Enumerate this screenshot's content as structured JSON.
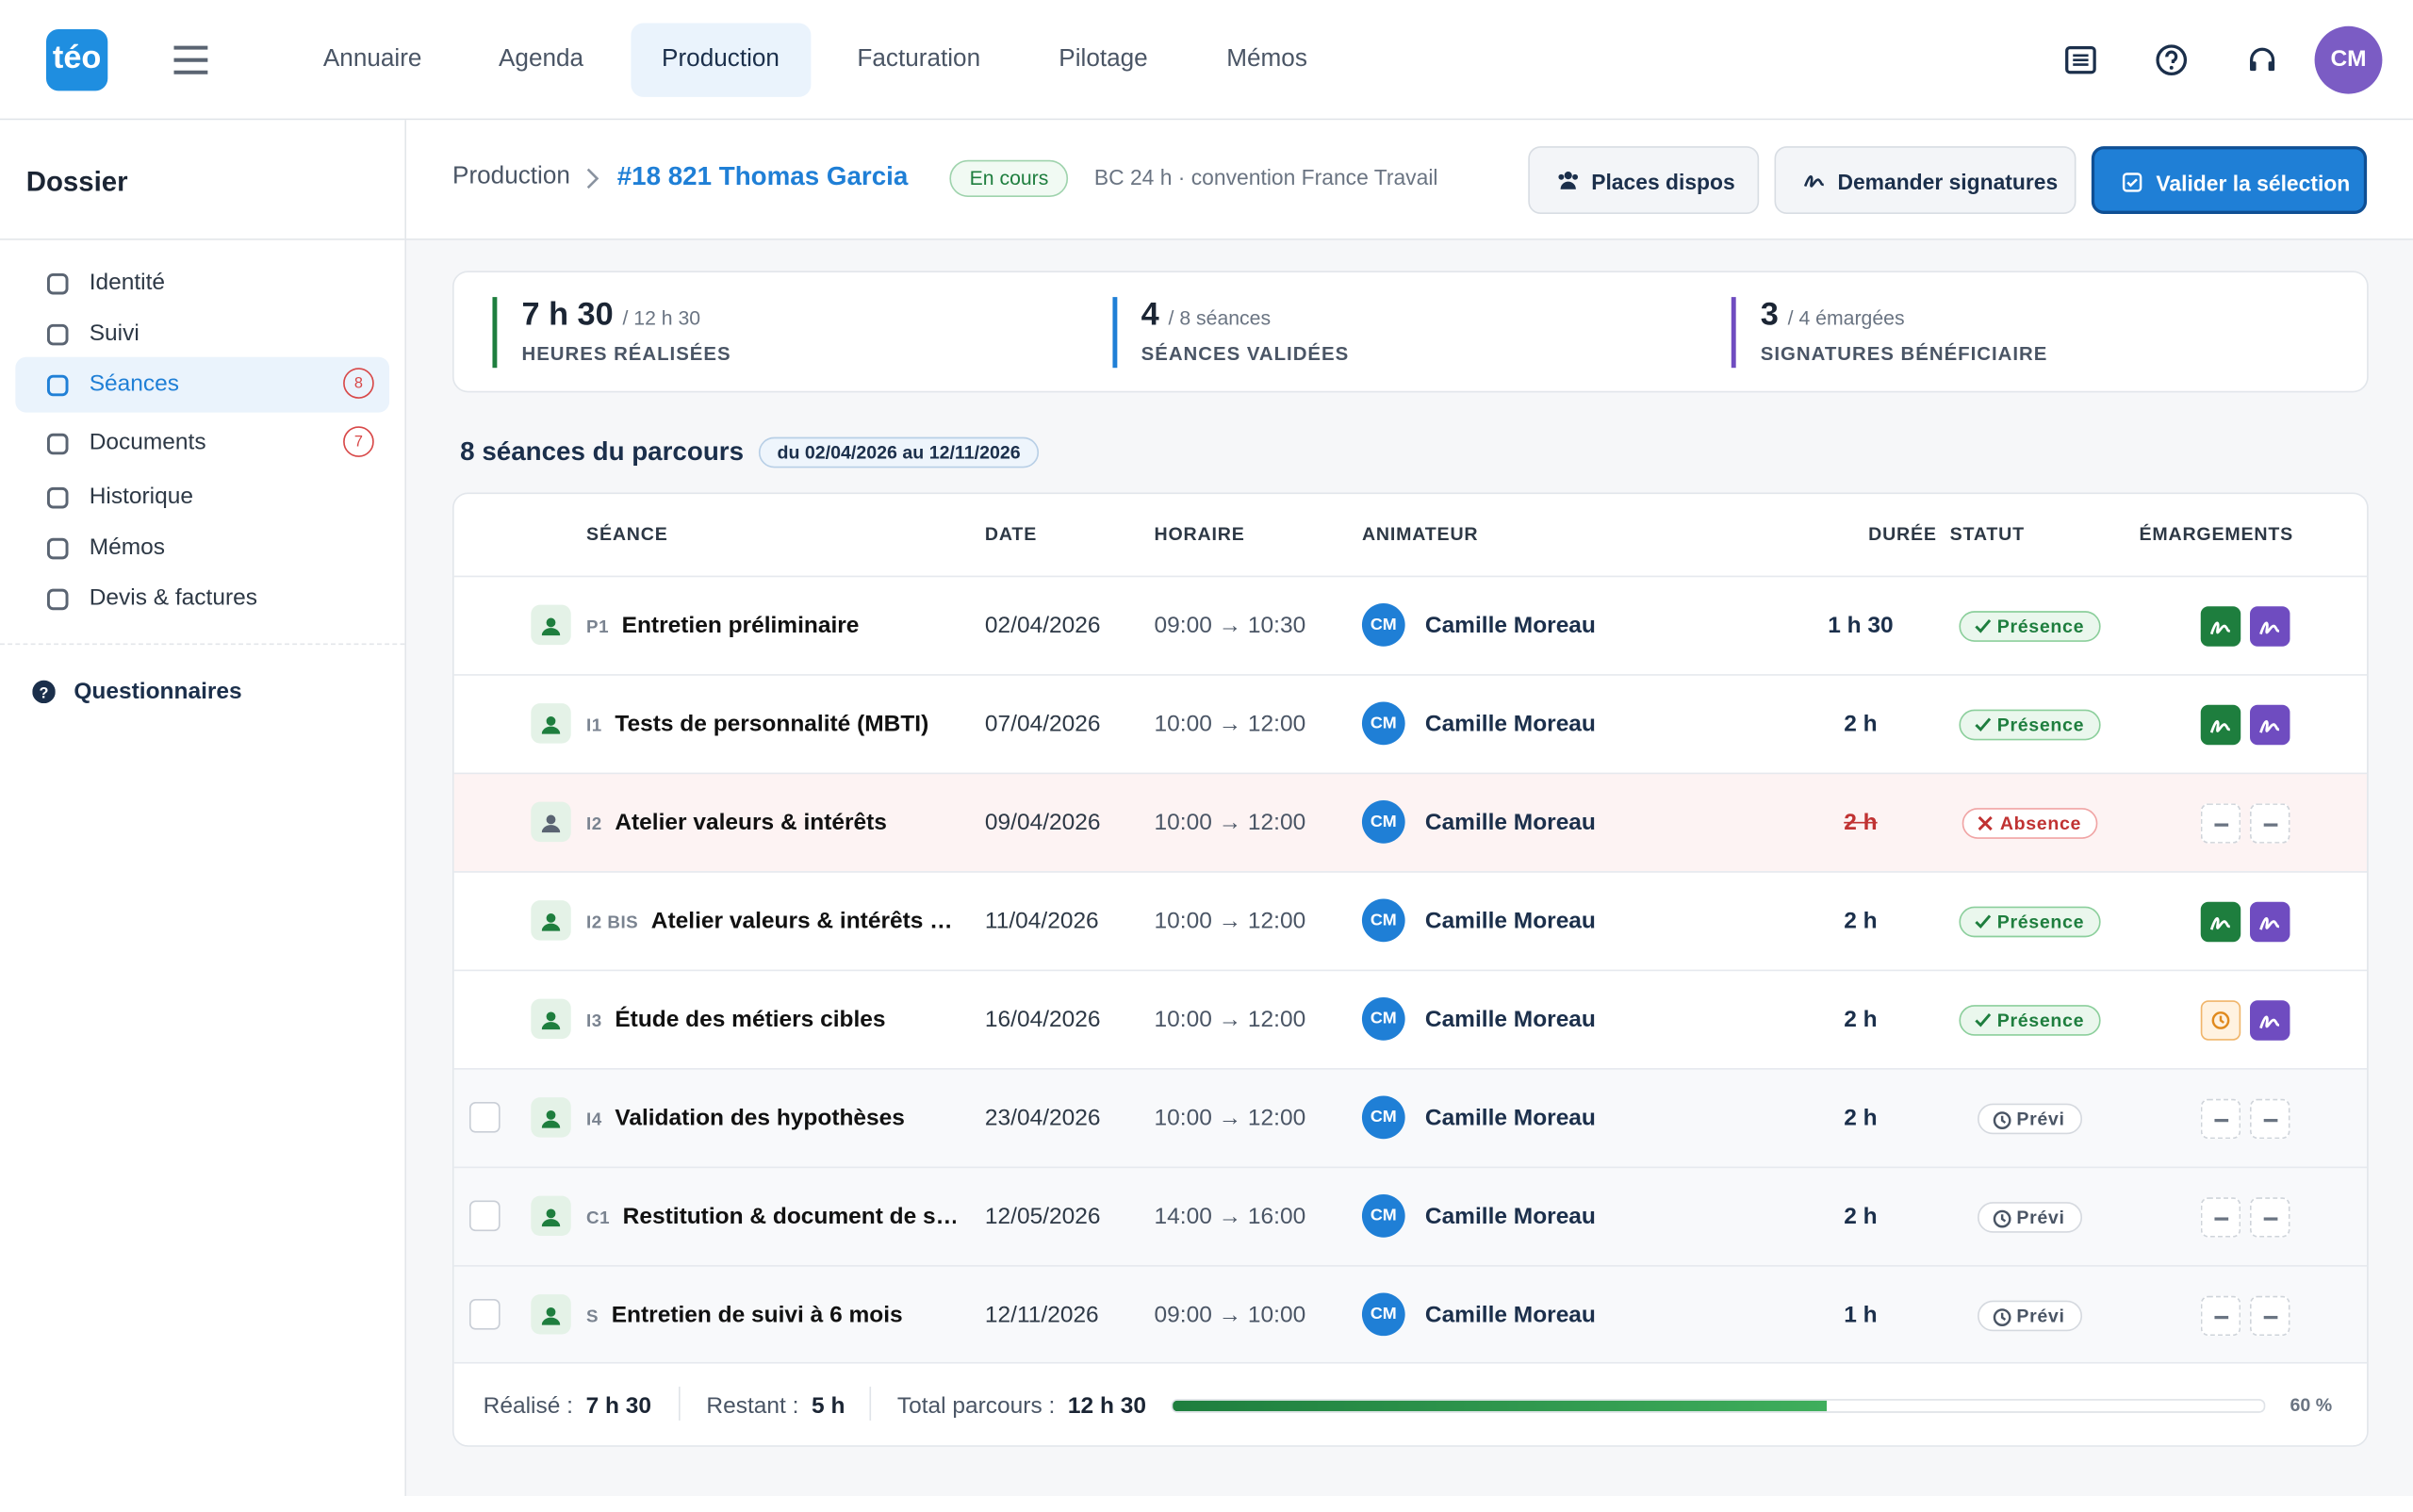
{
  "app": {
    "logo": "téo",
    "user_initials": "CM"
  },
  "nav": {
    "items": [
      "Annuaire",
      "Agenda",
      "Production",
      "Facturation",
      "Pilotage",
      "Mémos"
    ],
    "active": 2
  },
  "sidebar": {
    "title": "Dossier",
    "items": [
      {
        "label": "Identité"
      },
      {
        "label": "Suivi"
      },
      {
        "label": "Séances",
        "badge": 8
      },
      {
        "label": "Documents",
        "badge": 7
      },
      {
        "label": "Historique"
      },
      {
        "label": "Mémos"
      },
      {
        "label": "Devis & factures"
      }
    ],
    "active": 2,
    "footer": "Questionnaires"
  },
  "header": {
    "breadcrumb": "Production",
    "title": "#18 821 Thomas Garcia",
    "status": "En cours",
    "meta": "BC 24 h · convention France Travail",
    "buttons": [
      "Places dispos",
      "Demander signatures",
      "Valider la sélection"
    ]
  },
  "stats": [
    {
      "value": "7 h 30",
      "total": "/ 12 h 30",
      "label": "HEURES RÉALISÉES",
      "color": "#1e7e3e"
    },
    {
      "value": 4,
      "total": "/ 8 séances",
      "label": "SÉANCES VALIDÉES",
      "color": "#1f7fd6"
    },
    {
      "value": 3,
      "total": "/ 4 émargées",
      "label": "SIGNATURES BÉNÉFICIAIRE",
      "color": "#6f4cc0"
    }
  ],
  "section": {
    "title": "8 séances du parcours",
    "range": "du 02/04/2026 au 12/11/2026"
  },
  "table": {
    "columns": [
      "SÉANCE",
      "DATE",
      "HORAIRE",
      "ANIMATEUR",
      "DURÉE",
      "STATUT",
      "ÉMARGEMENTS"
    ],
    "rows": [
      {
        "code": "P1",
        "title": "Entretien préliminaire",
        "date": "02/04/2026",
        "time": "09:00 → 10:30",
        "initials": "CM",
        "animator": "Camille Moreau",
        "duration": "1 h 30",
        "status": "Présence",
        "tone": "success",
        "signatures": [
          "signed",
          "signed"
        ],
        "selectable": false
      },
      {
        "code": "I1",
        "title": "Tests de personnalité (MBTI)",
        "date": "07/04/2026",
        "time": "10:00 → 12:00",
        "initials": "CM",
        "animator": "Camille Moreau",
        "duration": "2 h",
        "status": "Présence",
        "tone": "success",
        "signatures": [
          "signed",
          "signed"
        ],
        "selectable": false
      },
      {
        "code": "I2",
        "title": "Atelier valeurs & intérêts",
        "date": "09/04/2026",
        "time": "10:00 → 12:00",
        "initials": "CM",
        "animator": "Camille Moreau",
        "duration": "2 h",
        "status": "Absence",
        "tone": "danger",
        "signatures": [
          "empty",
          "empty"
        ],
        "selectable": false
      },
      {
        "code": "I2 BIS",
        "title": "Atelier valeurs & intérêts …",
        "date": "11/04/2026",
        "time": "10:00 → 12:00",
        "initials": "CM",
        "animator": "Camille Moreau",
        "duration": "2 h",
        "status": "Présence",
        "tone": "success",
        "signatures": [
          "signed",
          "signed"
        ],
        "selectable": false
      },
      {
        "code": "I3",
        "title": "Étude des métiers cibles",
        "date": "16/04/2026",
        "time": "10:00 → 12:00",
        "initials": "CM",
        "animator": "Camille Moreau",
        "duration": "2 h",
        "status": "Présence",
        "tone": "success",
        "signatures": [
          "pending",
          "signed"
        ],
        "selectable": false
      },
      {
        "code": "I4",
        "title": "Validation des hypothèses",
        "date": "23/04/2026",
        "time": "10:00 → 12:00",
        "initials": "CM",
        "animator": "Camille Moreau",
        "duration": "2 h",
        "status": "Prévi",
        "tone": "neutral",
        "signatures": [
          "empty",
          "empty"
        ],
        "selectable": true
      },
      {
        "code": "C1",
        "title": "Restitution & document de s…",
        "date": "12/05/2026",
        "time": "14:00 → 16:00",
        "initials": "CM",
        "animator": "Camille Moreau",
        "duration": "2 h",
        "status": "Prévi",
        "tone": "neutral",
        "signatures": [
          "empty",
          "empty"
        ],
        "selectable": true
      },
      {
        "code": "S",
        "title": "Entretien de suivi à 6 mois",
        "date": "12/11/2026",
        "time": "09:00 → 10:00",
        "initials": "CM",
        "animator": "Camille Moreau",
        "duration": "1 h",
        "status": "Prévi",
        "tone": "neutral",
        "signatures": [
          "empty",
          "empty"
        ],
        "selectable": true
      }
    ]
  },
  "footer": {
    "done_label": "Réalisé :",
    "done": "7 h 30",
    "left_label": "Restant :",
    "left": "5 h",
    "total_label": "Total parcours :",
    "total": "12 h 30",
    "progress": 60,
    "progress_label": "60 %"
  }
}
